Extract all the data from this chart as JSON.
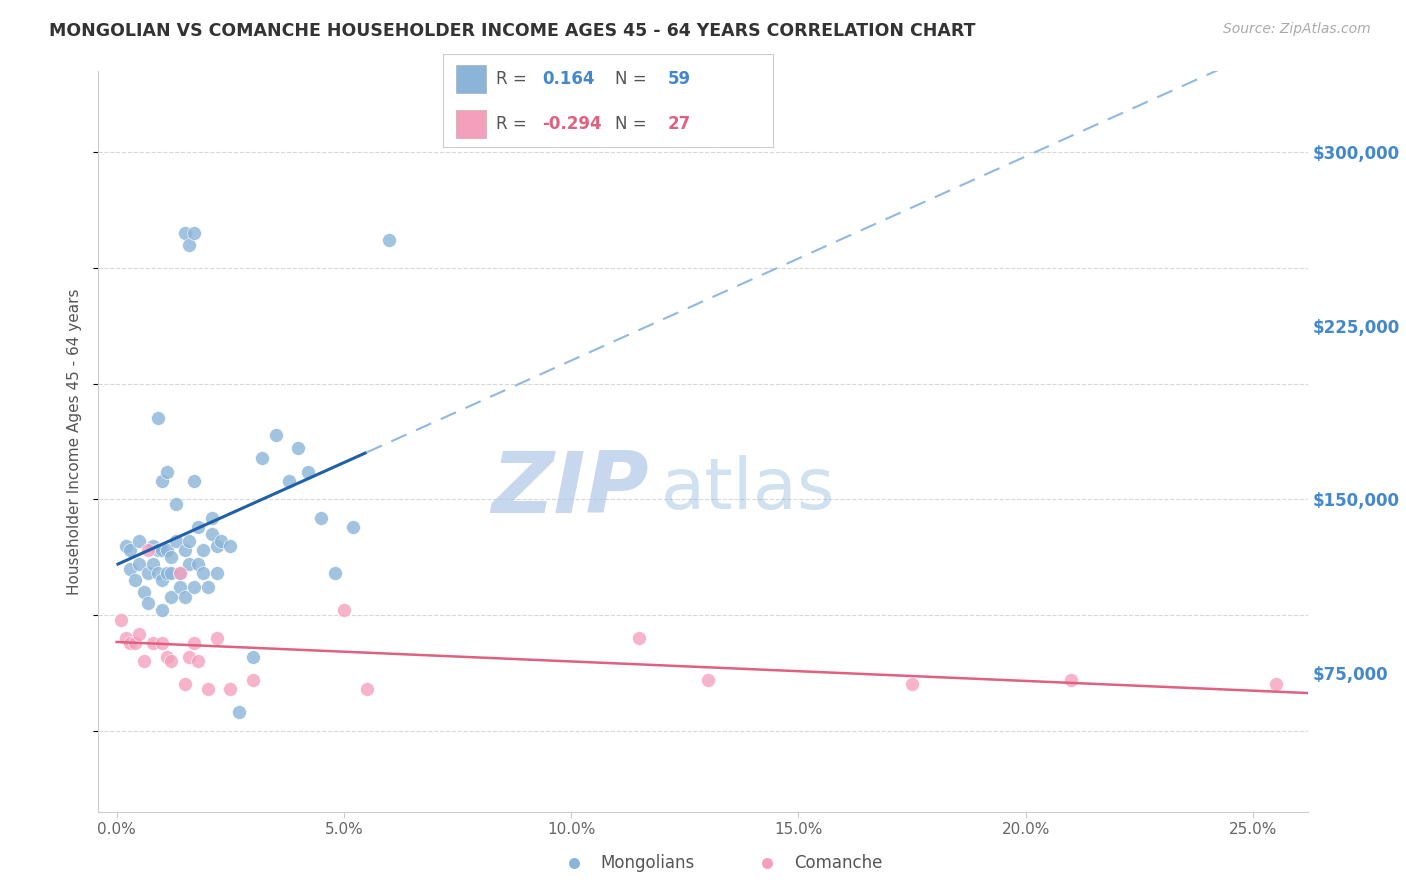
{
  "title": "MONGOLIAN VS COMANCHE HOUSEHOLDER INCOME AGES 45 - 64 YEARS CORRELATION CHART",
  "source": "Source: ZipAtlas.com",
  "ylabel": "Householder Income Ages 45 - 64 years",
  "xlabel_vals": [
    0.0,
    0.05,
    0.1,
    0.15,
    0.2,
    0.25
  ],
  "xlabel_labels": [
    "0.0%",
    "5.0%",
    "10.0%",
    "15.0%",
    "20.0%",
    "25.0%"
  ],
  "ytick_vals": [
    75000,
    150000,
    225000,
    300000
  ],
  "ytick_labels": [
    "$75,000",
    "$150,000",
    "$225,000",
    "$300,000"
  ],
  "xlim": [
    -0.004,
    0.262
  ],
  "ylim": [
    15000,
    335000
  ],
  "mongolian_color": "#8ab4d8",
  "comanche_color": "#f4a0bc",
  "mongolian_line_color": "#2060a8",
  "comanche_line_color": "#e06080",
  "mongolian_dashed_color": "#90b8e0",
  "R_mongolian": 0.164,
  "N_mongolian": 59,
  "R_comanche": -0.294,
  "N_comanche": 27,
  "mongolian_x": [
    0.002,
    0.003,
    0.003,
    0.004,
    0.005,
    0.005,
    0.006,
    0.007,
    0.007,
    0.008,
    0.008,
    0.009,
    0.009,
    0.01,
    0.01,
    0.01,
    0.011,
    0.011,
    0.012,
    0.012,
    0.012,
    0.013,
    0.013,
    0.014,
    0.014,
    0.015,
    0.015,
    0.016,
    0.016,
    0.017,
    0.017,
    0.018,
    0.018,
    0.019,
    0.019,
    0.02,
    0.021,
    0.021,
    0.022,
    0.022,
    0.023,
    0.025,
    0.027,
    0.03,
    0.032,
    0.035,
    0.038,
    0.04,
    0.042,
    0.045,
    0.048,
    0.052,
    0.06,
    0.015,
    0.016,
    0.017,
    0.009,
    0.01,
    0.011
  ],
  "mongolian_y": [
    130000,
    128000,
    120000,
    115000,
    122000,
    132000,
    110000,
    105000,
    118000,
    122000,
    130000,
    118000,
    128000,
    102000,
    115000,
    128000,
    118000,
    128000,
    108000,
    118000,
    125000,
    132000,
    148000,
    112000,
    118000,
    108000,
    128000,
    132000,
    122000,
    112000,
    158000,
    122000,
    138000,
    118000,
    128000,
    112000,
    135000,
    142000,
    118000,
    130000,
    132000,
    130000,
    58000,
    82000,
    168000,
    178000,
    158000,
    172000,
    162000,
    142000,
    118000,
    138000,
    262000,
    265000,
    260000,
    265000,
    185000,
    158000,
    162000
  ],
  "comanche_x": [
    0.001,
    0.002,
    0.003,
    0.004,
    0.005,
    0.006,
    0.007,
    0.008,
    0.01,
    0.011,
    0.012,
    0.014,
    0.015,
    0.016,
    0.017,
    0.018,
    0.02,
    0.022,
    0.025,
    0.03,
    0.05,
    0.055,
    0.115,
    0.13,
    0.175,
    0.21,
    0.255
  ],
  "comanche_y": [
    98000,
    90000,
    88000,
    88000,
    92000,
    80000,
    128000,
    88000,
    88000,
    82000,
    80000,
    118000,
    70000,
    82000,
    88000,
    80000,
    68000,
    90000,
    68000,
    72000,
    102000,
    68000,
    90000,
    72000,
    70000,
    72000,
    70000
  ],
  "watermark_zip": "ZIP",
  "watermark_atlas": "atlas",
  "background_color": "#ffffff",
  "grid_color": "#d8d8d8"
}
